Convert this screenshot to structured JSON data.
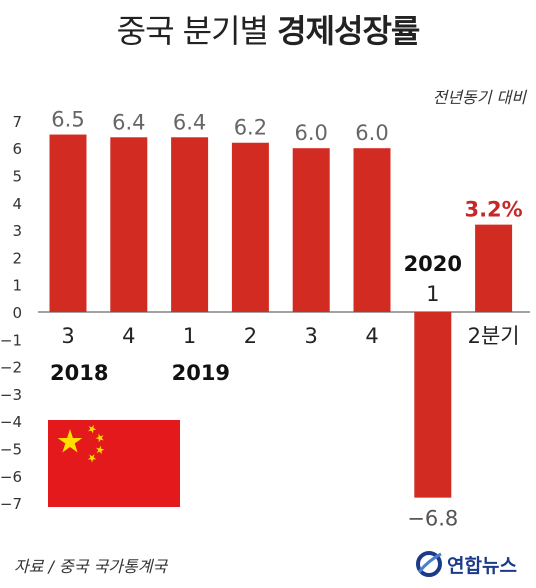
{
  "title": {
    "normal": "중국 분기별 ",
    "bold": "경제성장률"
  },
  "unit_label": "전년동기 대비",
  "source": "자료 / 중국 국가통계국",
  "logo": {
    "text": "연합뉴스",
    "icon": "yonhap-logo-icon"
  },
  "colors": {
    "bar": "#d22b21",
    "highlight_label": "#c62828",
    "flag_red": "#e4191b",
    "flag_star": "#ffde00",
    "grid": "#dddddd"
  },
  "chart_data": {
    "type": "bar",
    "categories": [
      "3",
      "4",
      "1",
      "2",
      "3",
      "4",
      "1",
      "2분기"
    ],
    "year_labels": [
      {
        "text": "2018",
        "at_index": 0
      },
      {
        "text": "2019",
        "at_index": 2
      },
      {
        "text": "2020",
        "at_index": 6
      }
    ],
    "values": [
      6.5,
      6.4,
      6.4,
      6.2,
      6.0,
      6.0,
      -6.8,
      3.2
    ],
    "value_labels": [
      "6.5",
      "6.4",
      "6.4",
      "6.2",
      "6.0",
      "6.0",
      "−6.8",
      "3.2%"
    ],
    "highlight_index": 7,
    "yticks": [
      "7",
      "6",
      "5",
      "4",
      "3",
      "2",
      "1",
      "0",
      "−1",
      "−2",
      "−3",
      "−4",
      "−5",
      "−6",
      "−7"
    ],
    "ylim": [
      -7,
      7
    ]
  }
}
